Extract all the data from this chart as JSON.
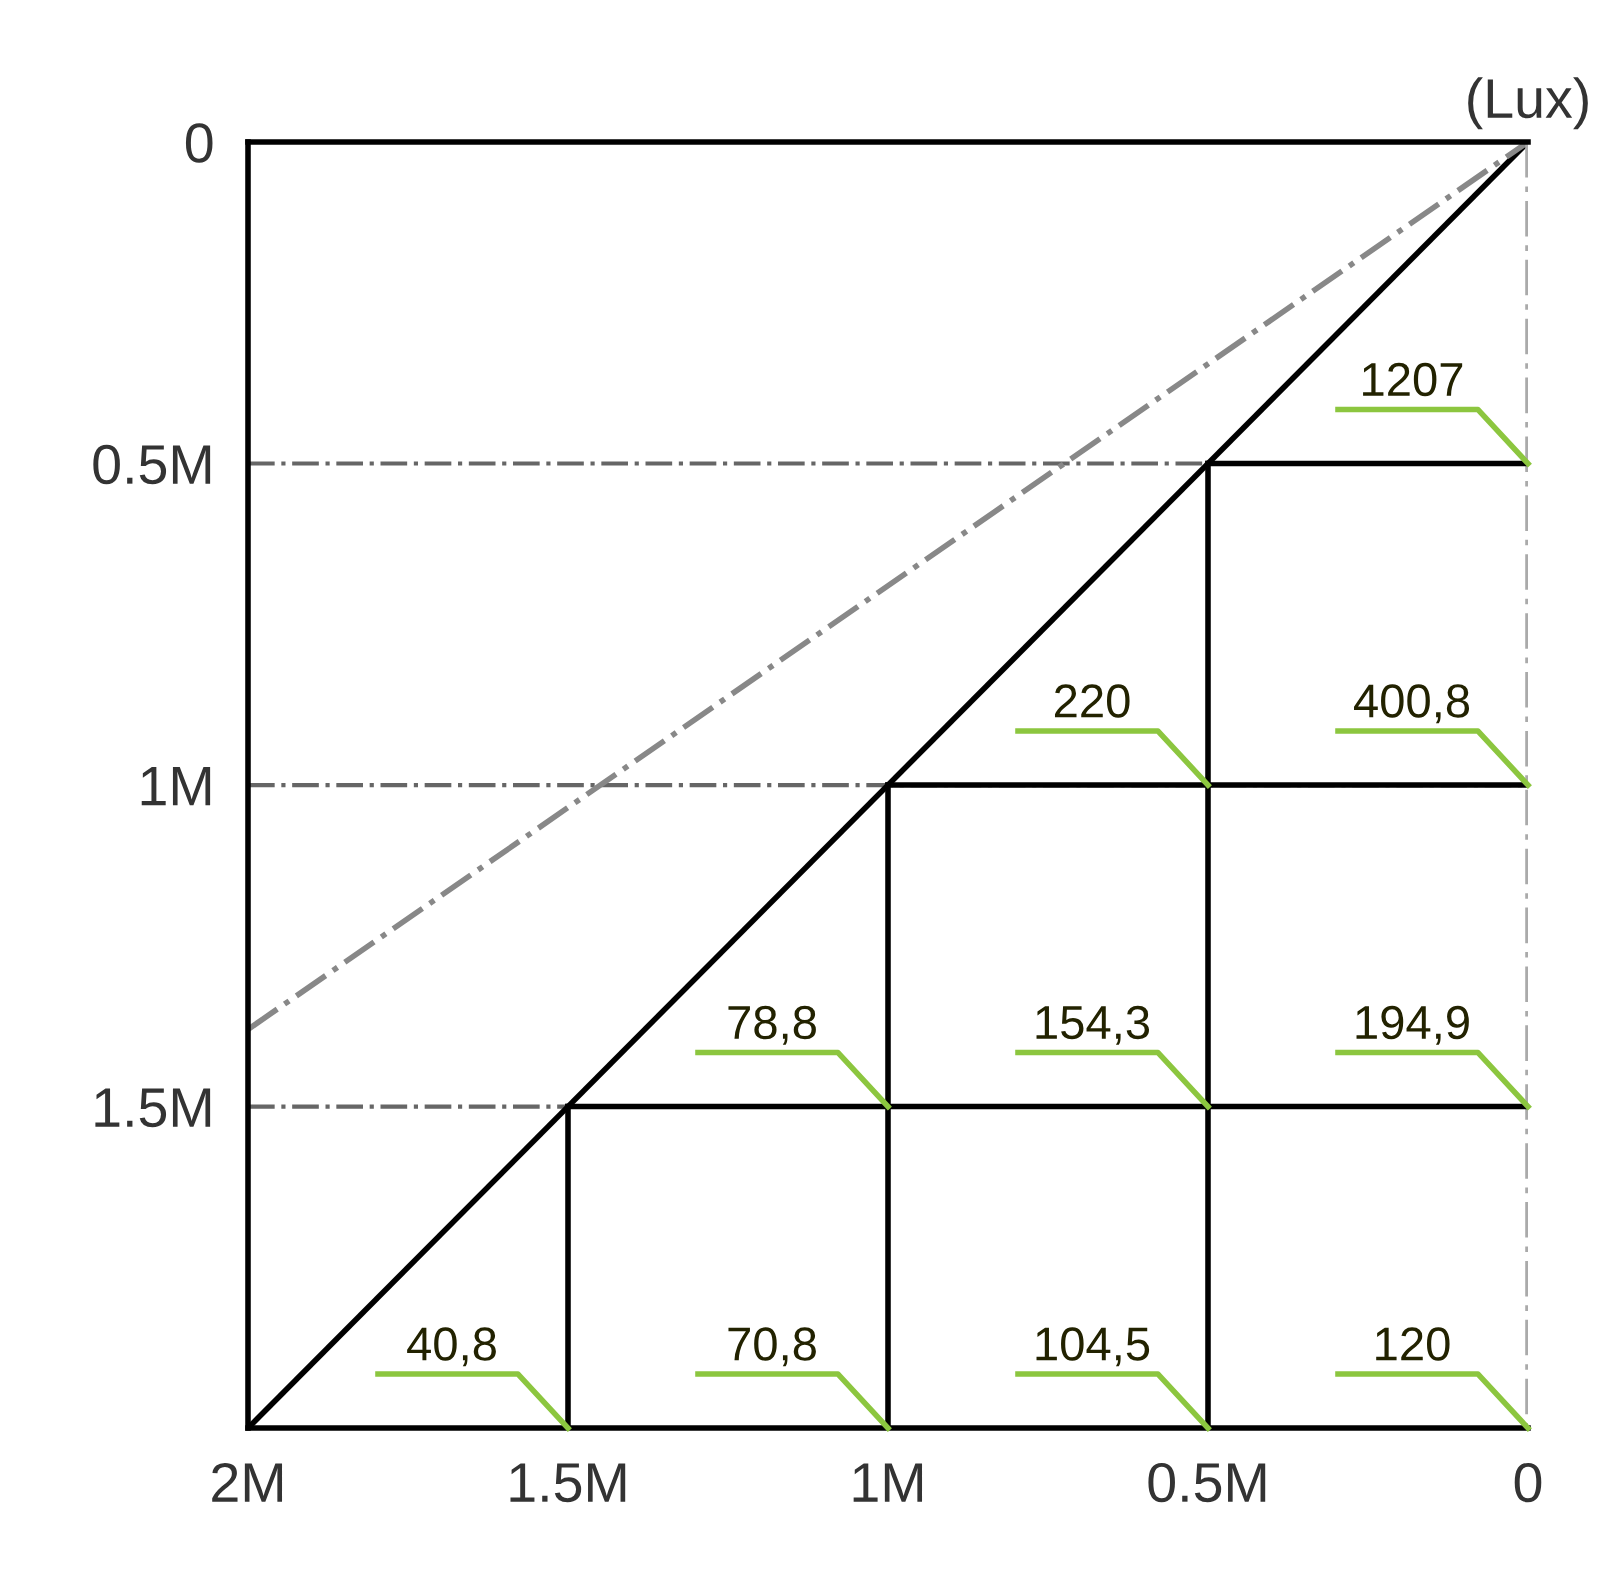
{
  "chart_data": {
    "type": "line",
    "xlim": [
      2000000,
      0
    ],
    "ylim": [
      2000000,
      0
    ],
    "xticks": [
      {
        "value": 2000000,
        "label": "2M"
      },
      {
        "value": 1500000,
        "label": "1.5M"
      },
      {
        "value": 1000000,
        "label": "1M"
      },
      {
        "value": 500000,
        "label": "0.5M"
      },
      0
    ],
    "yticks": [
      0,
      {
        "value": 500000,
        "label": "0.5M"
      },
      {
        "value": 1000000,
        "label": "1M"
      },
      {
        "value": 1500000,
        "label": "1.5M"
      }
    ],
    "series": [
      {
        "x": [
          2000000,
          0
        ],
        "values": [
          2000000,
          0
        ],
        "color": "#000000",
        "line_style": "solid"
      },
      {
        "x": [
          2000000,
          0
        ],
        "values": [
          1380000,
          0
        ],
        "color": "#888888",
        "line_style": "dashdot"
      },
      {
        "x": [
          0,
          0
        ],
        "values": [
          0,
          2000000
        ],
        "color": "#aaaaaa",
        "line_style": "dashdot"
      },
      {
        "x": [
          500000,
          0
        ],
        "values": [
          500000,
          500000
        ],
        "color": "#000000",
        "line_style": "solid"
      },
      {
        "x": [
          1000000,
          0
        ],
        "values": [
          1000000,
          1000000
        ],
        "color": "#000000",
        "line_style": "solid"
      },
      {
        "x": [
          1500000,
          0
        ],
        "values": [
          1500000,
          1500000
        ],
        "color": "#000000",
        "line_style": "solid"
      },
      {
        "x": [
          500000,
          500000
        ],
        "values": [
          500000,
          2000000
        ],
        "color": "#000000",
        "line_style": "solid"
      },
      {
        "x": [
          1000000,
          1000000
        ],
        "values": [
          1000000,
          2000000
        ],
        "color": "#000000",
        "line_style": "solid"
      },
      {
        "x": [
          1500000,
          1500000
        ],
        "values": [
          1500000,
          2000000
        ],
        "color": "#000000",
        "line_style": "solid"
      }
    ],
    "ref_lines": [
      {
        "axis": "y",
        "value": 500000,
        "color": "#666666",
        "line_style": "dashdot"
      },
      {
        "axis": "y",
        "value": 1000000,
        "color": "#666666",
        "line_style": "dashdot"
      },
      {
        "axis": "y",
        "value": 1500000,
        "color": "#666666",
        "line_style": "dashdot"
      }
    ],
    "annotations": [
      "(Lux)",
      {
        "text": "1207",
        "x": 0,
        "y": 500000
      },
      {
        "text": "220",
        "x": 500000,
        "y": 1000000
      },
      {
        "text": "400,8",
        "x": 0,
        "y": 1000000
      },
      {
        "text": "78,8",
        "x": 1000000,
        "y": 1500000
      },
      {
        "text": "154,3",
        "x": 500000,
        "y": 1500000
      },
      {
        "text": "194,9",
        "x": 0,
        "y": 1500000
      },
      {
        "text": "40,8",
        "x": 1500000,
        "y": 2000000
      },
      {
        "text": "70,8",
        "x": 1000000,
        "y": 2000000
      },
      {
        "text": "104,5",
        "x": 500000,
        "y": 2000000
      },
      {
        "text": "120",
        "x": 0,
        "y": 2000000
      }
    ]
  }
}
